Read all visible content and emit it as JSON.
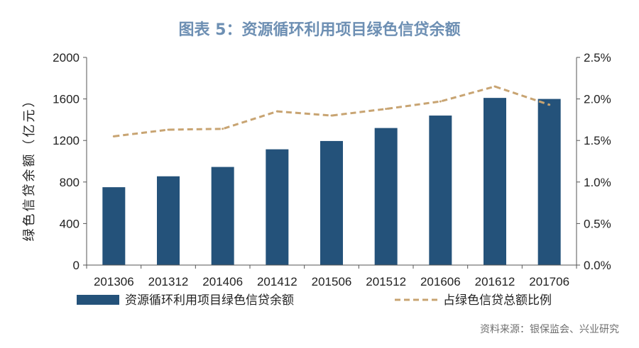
{
  "title": "图表 5：资源循环利用项目绿色信贷余额",
  "source": "资料来源：银保监会、兴业研究",
  "colors": {
    "bar": "#24527a",
    "line": "#c8a472",
    "title": "#6d8fb3"
  },
  "chart_data": {
    "type": "bar",
    "categories": [
      "201306",
      "201312",
      "201406",
      "201412",
      "201506",
      "201512",
      "201606",
      "201612",
      "201706"
    ],
    "series": [
      {
        "name": "资源循环利用项目绿色信贷余额",
        "type": "bar",
        "axis": "left",
        "values": [
          750,
          855,
          945,
          1115,
          1195,
          1320,
          1440,
          1610,
          1600
        ]
      },
      {
        "name": "占绿色信贷总额比例",
        "type": "line",
        "axis": "right",
        "style": "dashed",
        "values": [
          1.55,
          1.63,
          1.64,
          1.85,
          1.8,
          1.88,
          1.97,
          2.15,
          1.93
        ]
      }
    ],
    "ylabel": "绿色信贷余额（亿元）",
    "ylim": [
      0,
      2000
    ],
    "yticks": [
      "0",
      "400",
      "800",
      "1200",
      "1600",
      "2000"
    ],
    "y2lim": [
      0,
      2.5
    ],
    "y2ticks": [
      "0.0%",
      "0.5%",
      "1.0%",
      "1.5%",
      "2.0%",
      "2.5%"
    ],
    "grid": false,
    "legend": "bottom"
  }
}
